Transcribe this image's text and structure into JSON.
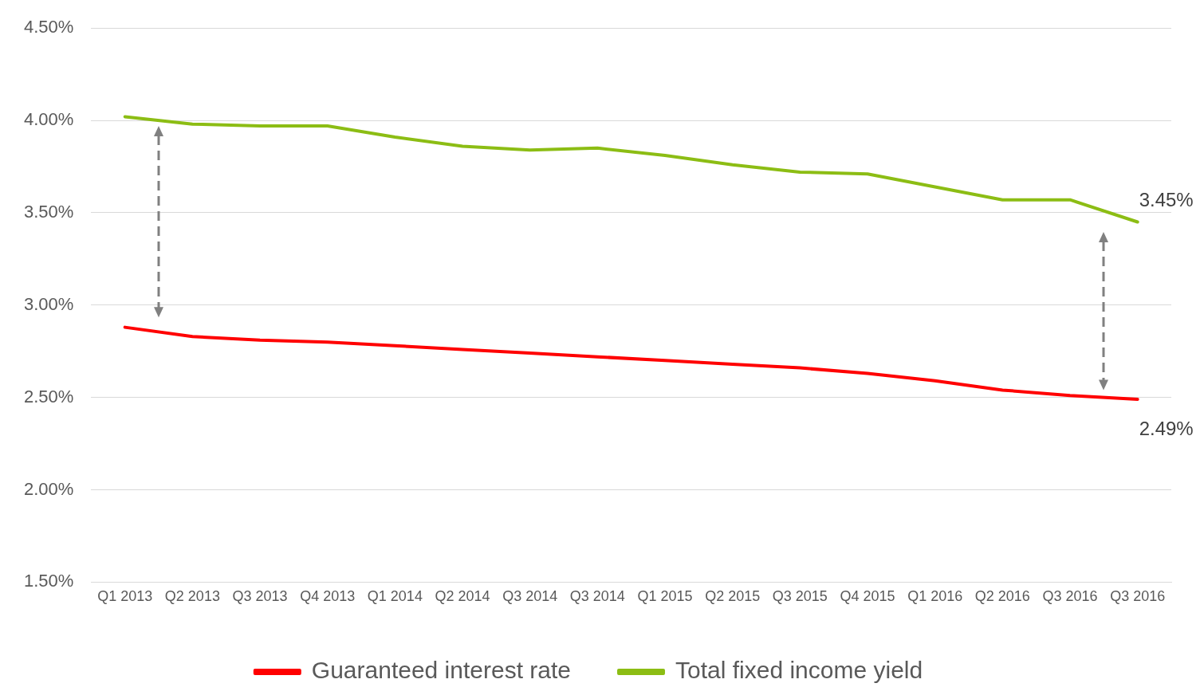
{
  "chart_data": {
    "type": "line",
    "categories": [
      "Q1 2013",
      "Q2 2013",
      "Q3 2013",
      "Q4 2013",
      "Q1 2014",
      "Q2 2014",
      "Q3 2014",
      "Q3 2014",
      "Q1 2015",
      "Q2 2015",
      "Q3 2015",
      "Q4 2015",
      "Q1 2016",
      "Q2 2016",
      "Q3 2016",
      "Q3 2016"
    ],
    "series": [
      {
        "name": "Guaranteed interest rate",
        "color": "#ff0000",
        "values": [
          2.88,
          2.83,
          2.81,
          2.8,
          2.78,
          2.76,
          2.74,
          2.72,
          2.7,
          2.68,
          2.66,
          2.63,
          2.59,
          2.54,
          2.51,
          2.49
        ],
        "value_labels": [
          null,
          null,
          null,
          null,
          null,
          null,
          null,
          null,
          null,
          null,
          null,
          null,
          null,
          null,
          null,
          "2.49%"
        ]
      },
      {
        "name": "Total fixed income yield",
        "color": "#8cbd14",
        "values": [
          4.02,
          3.98,
          3.97,
          3.97,
          3.91,
          3.86,
          3.84,
          3.85,
          3.81,
          3.76,
          3.72,
          3.71,
          3.64,
          3.57,
          3.57,
          3.45
        ],
        "value_labels": [
          null,
          null,
          null,
          null,
          null,
          null,
          null,
          null,
          null,
          null,
          null,
          null,
          null,
          null,
          null,
          "3.45%"
        ]
      }
    ],
    "ylim": [
      1.5,
      4.5
    ],
    "yticks": [
      {
        "value": 1.5,
        "label": "1.50%"
      },
      {
        "value": 2.0,
        "label": "2.00%"
      },
      {
        "value": 2.5,
        "label": "2.50%"
      },
      {
        "value": 3.0,
        "label": "3.00%"
      },
      {
        "value": 3.5,
        "label": "3.50%"
      },
      {
        "value": 4.0,
        "label": "4.00%"
      },
      {
        "value": 4.5,
        "label": "4.50%"
      }
    ],
    "grid": "y",
    "legend": "bottom",
    "marker": "none",
    "line_style": "solid"
  }
}
